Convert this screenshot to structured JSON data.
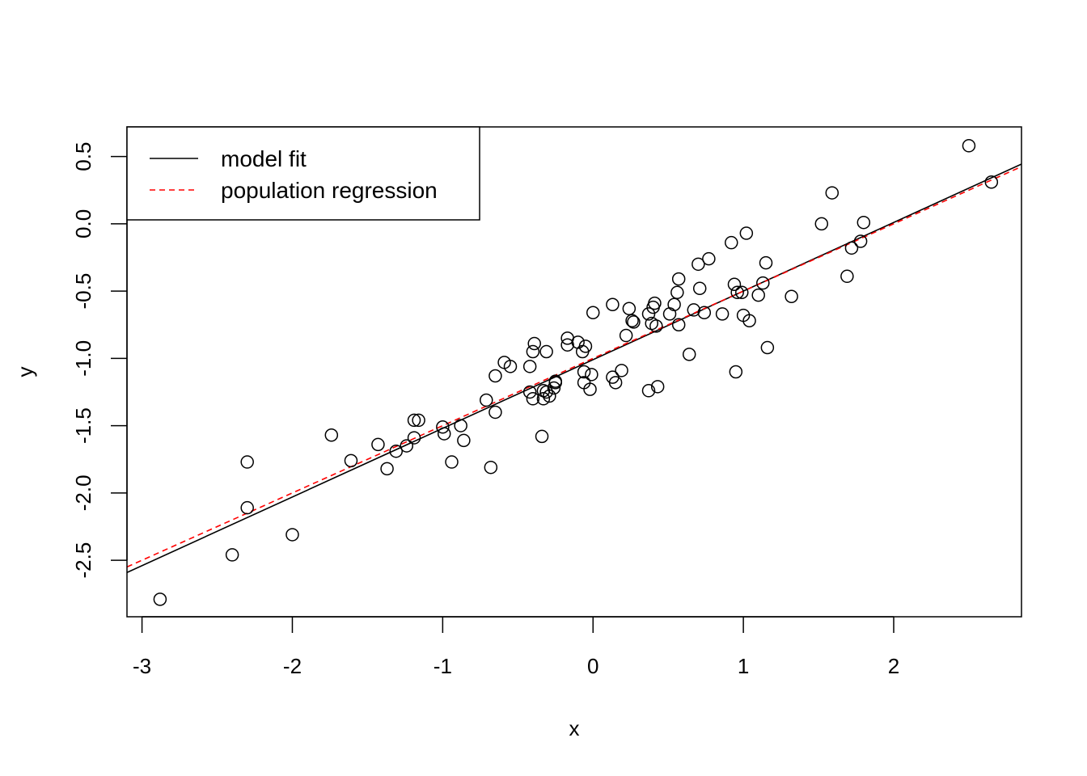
{
  "chart_data": {
    "type": "scatter",
    "title": "",
    "xlabel": "x",
    "ylabel": "y",
    "xlim": [
      -3.1,
      2.85
    ],
    "ylim": [
      -2.92,
      0.72
    ],
    "x_ticks": [
      -3,
      -2,
      -1,
      0,
      1,
      2
    ],
    "x_tick_labels": [
      "-3",
      "-2",
      "-1",
      "0",
      "1",
      "2"
    ],
    "y_ticks": [
      -2.5,
      -2.0,
      -1.5,
      -1.0,
      -0.5,
      0.0,
      0.5
    ],
    "y_tick_labels": [
      "-2.5",
      "-2.0",
      "-1.5",
      "-1.0",
      "-0.5",
      "0.0",
      "0.5"
    ],
    "grid": false,
    "legend": {
      "position": "top-left",
      "entries": [
        {
          "label": "model fit",
          "color": "#000000",
          "style": "solid"
        },
        {
          "label": "population regression",
          "color": "#ff0000",
          "style": "dashed"
        }
      ]
    },
    "lines": [
      {
        "name": "model fit",
        "color": "#000000",
        "style": "solid",
        "intercept": -1.01,
        "slope": 0.51
      },
      {
        "name": "population regression",
        "color": "#ff0000",
        "style": "dashed",
        "intercept": -1.0,
        "slope": 0.5
      }
    ],
    "points": [
      [
        -2.88,
        -2.79
      ],
      [
        -2.4,
        -2.46
      ],
      [
        -2.3,
        -1.77
      ],
      [
        -2.3,
        -2.11
      ],
      [
        -2.0,
        -2.31
      ],
      [
        -1.74,
        -1.57
      ],
      [
        -1.61,
        -1.76
      ],
      [
        -1.43,
        -1.64
      ],
      [
        -1.37,
        -1.82
      ],
      [
        -1.31,
        -1.69
      ],
      [
        -1.24,
        -1.65
      ],
      [
        -1.19,
        -1.46
      ],
      [
        -1.19,
        -1.59
      ],
      [
        -1.16,
        -1.46
      ],
      [
        -1.0,
        -1.51
      ],
      [
        -0.99,
        -1.56
      ],
      [
        -0.94,
        -1.77
      ],
      [
        -0.88,
        -1.5
      ],
      [
        -0.86,
        -1.61
      ],
      [
        -0.71,
        -1.31
      ],
      [
        -0.68,
        -1.81
      ],
      [
        -0.65,
        -1.13
      ],
      [
        -0.65,
        -1.4
      ],
      [
        -0.59,
        -1.03
      ],
      [
        -0.55,
        -1.06
      ],
      [
        -0.42,
        -1.06
      ],
      [
        -0.42,
        -1.25
      ],
      [
        -0.4,
        -0.95
      ],
      [
        -0.4,
        -1.3
      ],
      [
        -0.39,
        -0.89
      ],
      [
        -0.34,
        -1.58
      ],
      [
        -0.33,
        -1.24
      ],
      [
        -0.33,
        -1.3
      ],
      [
        -0.31,
        -1.25
      ],
      [
        -0.31,
        -0.95
      ],
      [
        -0.29,
        -1.28
      ],
      [
        -0.26,
        -1.22
      ],
      [
        -0.25,
        -1.17
      ],
      [
        -0.25,
        -1.18
      ],
      [
        -0.17,
        -0.85
      ],
      [
        -0.17,
        -0.9
      ],
      [
        -0.1,
        -0.88
      ],
      [
        -0.07,
        -0.95
      ],
      [
        -0.06,
        -1.1
      ],
      [
        -0.06,
        -1.18
      ],
      [
        -0.05,
        -0.91
      ],
      [
        -0.02,
        -1.23
      ],
      [
        -0.01,
        -1.12
      ],
      [
        0.0,
        -0.66
      ],
      [
        0.13,
        -0.6
      ],
      [
        0.13,
        -1.14
      ],
      [
        0.15,
        -1.18
      ],
      [
        0.19,
        -1.09
      ],
      [
        0.22,
        -0.83
      ],
      [
        0.24,
        -0.63
      ],
      [
        0.26,
        -0.72
      ],
      [
        0.27,
        -0.73
      ],
      [
        0.37,
        -0.67
      ],
      [
        0.37,
        -1.24
      ],
      [
        0.39,
        -0.74
      ],
      [
        0.4,
        -0.62
      ],
      [
        0.41,
        -0.59
      ],
      [
        0.42,
        -0.76
      ],
      [
        0.43,
        -1.21
      ],
      [
        0.51,
        -0.67
      ],
      [
        0.54,
        -0.6
      ],
      [
        0.56,
        -0.51
      ],
      [
        0.57,
        -0.41
      ],
      [
        0.57,
        -0.75
      ],
      [
        0.64,
        -0.97
      ],
      [
        0.67,
        -0.64
      ],
      [
        0.7,
        -0.3
      ],
      [
        0.71,
        -0.48
      ],
      [
        0.74,
        -0.66
      ],
      [
        0.77,
        -0.26
      ],
      [
        0.86,
        -0.67
      ],
      [
        0.92,
        -0.14
      ],
      [
        0.94,
        -0.45
      ],
      [
        0.95,
        -1.1
      ],
      [
        0.96,
        -0.51
      ],
      [
        0.99,
        -0.51
      ],
      [
        1.0,
        -0.68
      ],
      [
        1.02,
        -0.07
      ],
      [
        1.04,
        -0.72
      ],
      [
        1.1,
        -0.53
      ],
      [
        1.13,
        -0.44
      ],
      [
        1.15,
        -0.29
      ],
      [
        1.16,
        -0.92
      ],
      [
        1.32,
        -0.54
      ],
      [
        1.52,
        0.0
      ],
      [
        1.59,
        0.23
      ],
      [
        1.69,
        -0.39
      ],
      [
        1.72,
        -0.18
      ],
      [
        1.78,
        -0.13
      ],
      [
        1.8,
        0.01
      ],
      [
        2.5,
        0.58
      ],
      [
        2.65,
        0.31
      ]
    ]
  }
}
